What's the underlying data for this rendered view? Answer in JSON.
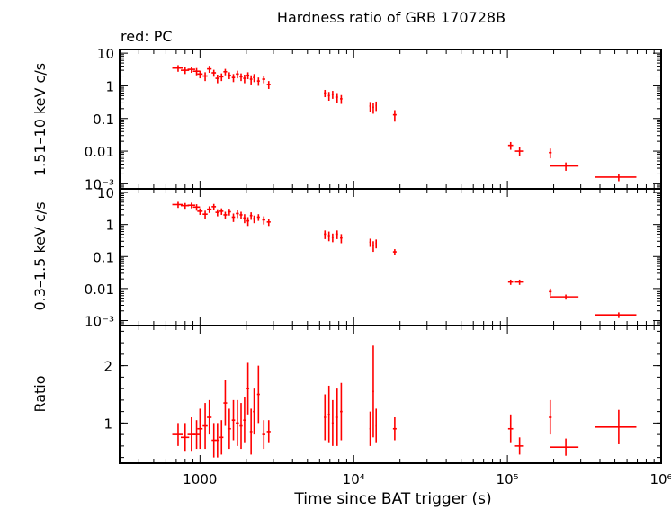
{
  "title": "Hardness ratio of GRB 170728B",
  "subtitle": "red: PC",
  "xlabel": "Time since BAT trigger (s)",
  "x_ticks": [
    "1000",
    "10⁴",
    "10⁵",
    "10⁶"
  ],
  "colors": {
    "data": "#ff0000",
    "axes": "#000000",
    "background": "#ffffff"
  },
  "chart_data": [
    {
      "type": "scatter",
      "panel": "hard band",
      "ylabel": "1.51–10 keV c/s",
      "log_y": true,
      "log_x": true,
      "xlim": [
        300,
        1000000
      ],
      "ylim": [
        0.0007,
        13
      ],
      "y_ticks": [
        "10",
        "1",
        "0.1",
        "0.01",
        "10⁻³"
      ],
      "series": [
        {
          "color": "#ff0000",
          "points": [
            [
              720,
              3.5,
              60,
              0.8
            ],
            [
              800,
              3.0,
              50,
              0.7
            ],
            [
              880,
              3.2,
              50,
              0.7
            ],
            [
              950,
              2.8,
              50,
              0.7
            ],
            [
              1000,
              2.3,
              40,
              0.6
            ],
            [
              1080,
              2.0,
              40,
              0.6
            ],
            [
              1150,
              3.3,
              40,
              0.8
            ],
            [
              1230,
              2.5,
              40,
              0.6
            ],
            [
              1300,
              1.7,
              40,
              0.5
            ],
            [
              1380,
              1.9,
              40,
              0.5
            ],
            [
              1460,
              2.7,
              40,
              0.6
            ],
            [
              1550,
              2.1,
              40,
              0.5
            ],
            [
              1650,
              1.8,
              40,
              0.5
            ],
            [
              1750,
              2.3,
              40,
              0.6
            ],
            [
              1850,
              1.9,
              40,
              0.5
            ],
            [
              1950,
              1.7,
              40,
              0.5
            ],
            [
              2050,
              2.1,
              40,
              0.5
            ],
            [
              2150,
              1.6,
              40,
              0.5
            ],
            [
              2250,
              1.8,
              40,
              0.5
            ],
            [
              2400,
              1.4,
              50,
              0.4
            ],
            [
              2600,
              1.6,
              60,
              0.4
            ],
            [
              2800,
              1.1,
              80,
              0.3
            ],
            [
              6500,
              0.6,
              100,
              0.15
            ],
            [
              6900,
              0.5,
              100,
              0.15
            ],
            [
              7300,
              0.55,
              100,
              0.15
            ],
            [
              7800,
              0.45,
              100,
              0.15
            ],
            [
              8300,
              0.4,
              150,
              0.12
            ],
            [
              12800,
              0.24,
              150,
              0.08
            ],
            [
              13400,
              0.22,
              150,
              0.08
            ],
            [
              14000,
              0.25,
              150,
              0.08
            ],
            [
              18500,
              0.13,
              500,
              0.05
            ],
            [
              105000,
              0.015,
              4000,
              0.004
            ],
            [
              120000,
              0.01,
              8000,
              0.003
            ],
            [
              190000,
              0.009,
              4000,
              0.003
            ],
            [
              240000,
              0.0035,
              50000,
              0.001
            ],
            [
              530000,
              0.0016,
              160000,
              0.0004
            ]
          ]
        }
      ]
    },
    {
      "type": "scatter",
      "panel": "soft band",
      "ylabel": "0.3–1.5 keV c/s",
      "log_y": true,
      "log_x": true,
      "xlim": [
        300,
        1000000
      ],
      "ylim": [
        0.0007,
        13
      ],
      "y_ticks": [
        "10",
        "1",
        "0.1",
        "0.01",
        "10⁻³"
      ],
      "series": [
        {
          "color": "#ff0000",
          "points": [
            [
              720,
              4.2,
              60,
              0.9
            ],
            [
              800,
              3.9,
              50,
              0.8
            ],
            [
              880,
              4.0,
              50,
              0.8
            ],
            [
              950,
              3.5,
              50,
              0.8
            ],
            [
              1000,
              2.6,
              40,
              0.6
            ],
            [
              1080,
              2.1,
              40,
              0.6
            ],
            [
              1150,
              3.0,
              40,
              0.7
            ],
            [
              1230,
              3.6,
              40,
              0.8
            ],
            [
              1300,
              2.4,
              40,
              0.6
            ],
            [
              1380,
              2.6,
              40,
              0.6
            ],
            [
              1460,
              2.0,
              40,
              0.5
            ],
            [
              1550,
              2.5,
              40,
              0.6
            ],
            [
              1650,
              1.7,
              40,
              0.5
            ],
            [
              1750,
              2.2,
              40,
              0.6
            ],
            [
              1850,
              2.0,
              40,
              0.5
            ],
            [
              1950,
              1.6,
              40,
              0.5
            ],
            [
              2050,
              1.3,
              40,
              0.4
            ],
            [
              2150,
              1.9,
              40,
              0.5
            ],
            [
              2250,
              1.5,
              40,
              0.4
            ],
            [
              2400,
              1.7,
              50,
              0.4
            ],
            [
              2600,
              1.4,
              60,
              0.4
            ],
            [
              2800,
              1.2,
              80,
              0.3
            ],
            [
              6500,
              0.5,
              100,
              0.15
            ],
            [
              6900,
              0.45,
              100,
              0.15
            ],
            [
              7300,
              0.4,
              100,
              0.12
            ],
            [
              7800,
              0.5,
              100,
              0.15
            ],
            [
              8300,
              0.38,
              150,
              0.12
            ],
            [
              12800,
              0.28,
              150,
              0.08
            ],
            [
              13400,
              0.22,
              150,
              0.08
            ],
            [
              14000,
              0.26,
              150,
              0.08
            ],
            [
              18500,
              0.14,
              500,
              0.03
            ],
            [
              105000,
              0.016,
              4000,
              0.003
            ],
            [
              120000,
              0.016,
              8000,
              0.003
            ],
            [
              190000,
              0.008,
              4000,
              0.002
            ],
            [
              240000,
              0.0055,
              50000,
              0.001
            ],
            [
              530000,
              0.0015,
              160000,
              0.0003
            ]
          ]
        }
      ]
    },
    {
      "type": "scatter",
      "panel": "ratio",
      "ylabel": "Ratio",
      "log_y": false,
      "log_x": true,
      "xlim": [
        300,
        1000000
      ],
      "ylim": [
        0.3,
        2.7
      ],
      "y_ticks": [
        "1",
        "2"
      ],
      "series": [
        {
          "color": "#ff0000",
          "points": [
            [
              720,
              0.8,
              60,
              0.2
            ],
            [
              800,
              0.75,
              50,
              0.25
            ],
            [
              880,
              0.8,
              50,
              0.3
            ],
            [
              950,
              0.8,
              50,
              0.25
            ],
            [
              1000,
              0.9,
              40,
              0.35
            ],
            [
              1080,
              0.95,
              40,
              0.4
            ],
            [
              1150,
              1.1,
              40,
              0.3
            ],
            [
              1230,
              0.7,
              40,
              0.3
            ],
            [
              1300,
              0.7,
              40,
              0.3
            ],
            [
              1380,
              0.75,
              40,
              0.3
            ],
            [
              1460,
              1.35,
              40,
              0.4
            ],
            [
              1550,
              0.9,
              40,
              0.35
            ],
            [
              1650,
              1.05,
              40,
              0.35
            ],
            [
              1750,
              1.0,
              40,
              0.4
            ],
            [
              1850,
              0.95,
              40,
              0.4
            ],
            [
              1950,
              1.05,
              40,
              0.4
            ],
            [
              2050,
              1.6,
              40,
              0.45
            ],
            [
              2150,
              0.85,
              40,
              0.4
            ],
            [
              2250,
              1.2,
              40,
              0.4
            ],
            [
              2400,
              1.5,
              50,
              0.5
            ],
            [
              2600,
              0.8,
              60,
              0.25
            ],
            [
              2800,
              0.85,
              80,
              0.2
            ],
            [
              6500,
              1.1,
              100,
              0.4
            ],
            [
              6900,
              1.15,
              100,
              0.5
            ],
            [
              7300,
              1.0,
              100,
              0.4
            ],
            [
              7800,
              1.1,
              100,
              0.5
            ],
            [
              8300,
              1.2,
              150,
              0.5
            ],
            [
              12800,
              0.9,
              150,
              0.3
            ],
            [
              13400,
              1.55,
              150,
              0.8
            ],
            [
              14000,
              0.95,
              150,
              0.3
            ],
            [
              18500,
              0.9,
              500,
              0.2
            ],
            [
              105000,
              0.9,
              4000,
              0.25
            ],
            [
              120000,
              0.6,
              8000,
              0.15
            ],
            [
              190000,
              1.1,
              4000,
              0.3
            ],
            [
              240000,
              0.58,
              50000,
              0.15
            ],
            [
              530000,
              0.93,
              160000,
              0.3
            ]
          ]
        }
      ]
    }
  ]
}
